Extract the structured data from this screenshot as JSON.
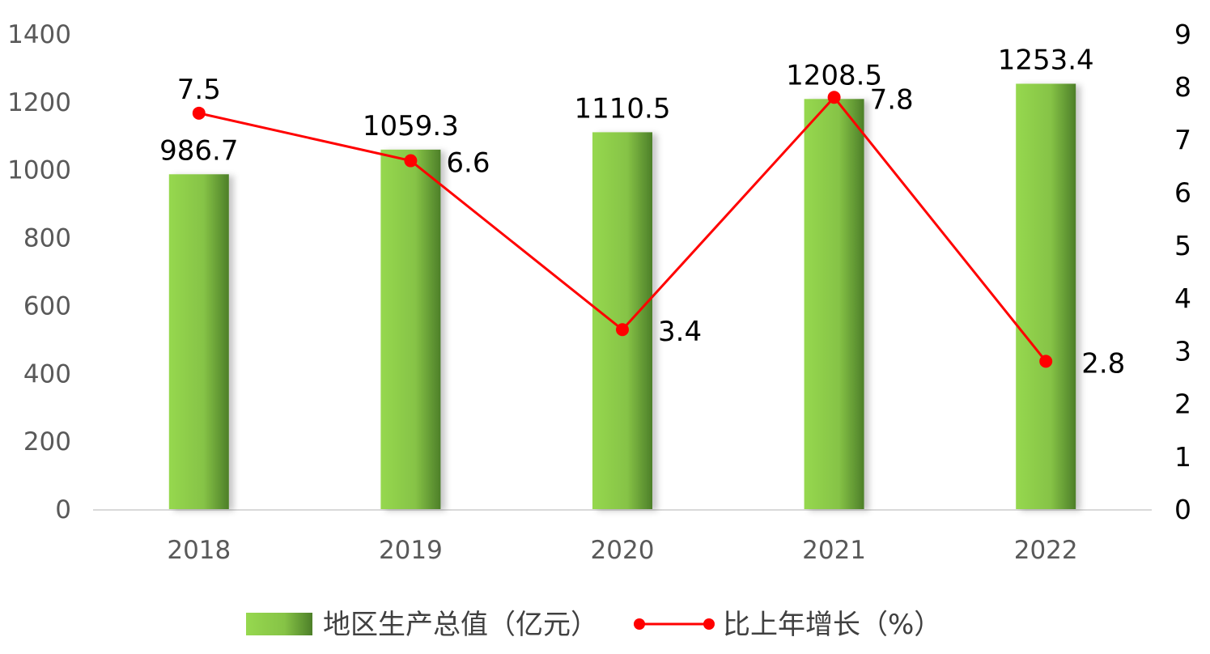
{
  "chart_data": {
    "type": "bar",
    "categories": [
      "2018",
      "2019",
      "2020",
      "2021",
      "2022"
    ],
    "series": [
      {
        "name": "地区生产总值（亿元）",
        "type": "bar",
        "axis": "left",
        "values": [
          986.7,
          1059.3,
          1110.5,
          1208.5,
          1253.4
        ],
        "labels": [
          "986.7",
          "1059.3",
          "1110.5",
          "1208.5",
          "1253.4"
        ],
        "color": "#8fd14f"
      },
      {
        "name": "比上年增长（%）",
        "type": "line",
        "axis": "right",
        "values": [
          7.5,
          6.6,
          3.4,
          7.8,
          2.8
        ],
        "labels": [
          "7.5",
          "6.6",
          "3.4",
          "7.8",
          "2.8"
        ],
        "color": "#ff0000"
      }
    ],
    "y_left": {
      "ylim": [
        0,
        1400
      ],
      "ticks": [
        "0",
        "200",
        "400",
        "600",
        "800",
        "1000",
        "1200",
        "1400"
      ]
    },
    "y_right": {
      "ylim": [
        0,
        9
      ],
      "ticks": [
        "0",
        "1",
        "2",
        "3",
        "4",
        "5",
        "6",
        "7",
        "8",
        "9"
      ]
    },
    "legend": {
      "placement": "bottom-center",
      "items": [
        "地区生产总值（亿元）",
        "比上年增长（%）"
      ]
    },
    "grid": false
  }
}
